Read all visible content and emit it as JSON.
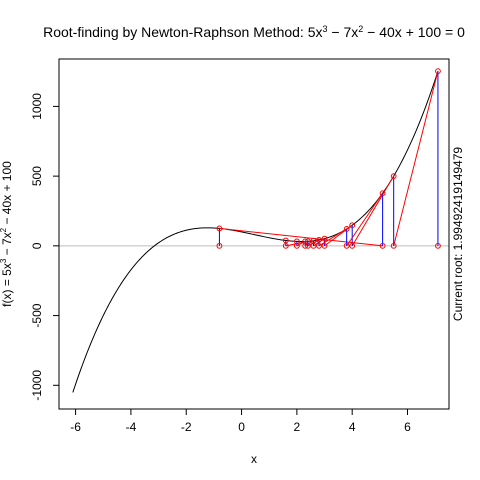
{
  "chart_data": {
    "type": "line",
    "title": "Root-finding by Newton-Raphson Method: 5x³ − 7x² − 40x + 100 = 0",
    "title_parts": {
      "main": "Root-finding by Newton-Raphson Method: ",
      "equation": [
        {
          "t": "5x",
          "sup": false
        },
        {
          "t": "3",
          "sup": true
        },
        {
          "t": " − 7x",
          "sup": false
        },
        {
          "t": "2",
          "sup": true
        },
        {
          "t": " − 40x + 100 = 0",
          "sup": false
        }
      ]
    },
    "xlabel": "x",
    "ylabel_parts": [
      {
        "t": "f(x) = 5x",
        "sup": false
      },
      {
        "t": "3",
        "sup": true
      },
      {
        "t": " − 7x",
        "sup": false
      },
      {
        "t": "2",
        "sup": true
      },
      {
        "t": " − 40x + 100",
        "sup": false
      }
    ],
    "right_label": "Current root: 1.99492419149479",
    "xlim": [
      -6.6,
      7.5
    ],
    "ylim": [
      -1170,
      1340
    ],
    "xticks": [
      -6,
      -4,
      -2,
      0,
      2,
      4,
      6
    ],
    "yticks": [
      -1000,
      -500,
      0,
      500,
      1000
    ],
    "grid": false,
    "function_coefficients": [
      5,
      -7,
      -40,
      100
    ],
    "curve_x_range": [
      -6.1,
      7.1
    ],
    "iterates": [
      7.1,
      5.5,
      4.0,
      3.0,
      2.6,
      2.3,
      2.0
    ],
    "iterates_b": [
      -0.8,
      5.1,
      3.8,
      2.8,
      2.4,
      1.6
    ],
    "colors": {
      "curve": "#000000",
      "baseline": "#bebebe",
      "tangent": "#ff0000",
      "vertical": "#0000ff",
      "point": "#ff0000"
    }
  }
}
